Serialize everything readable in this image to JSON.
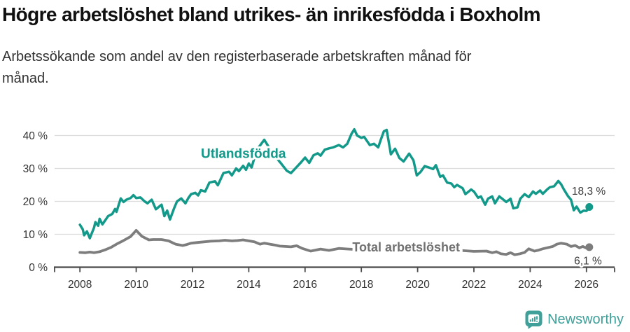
{
  "header": {
    "title": "Högre arbetslöshet bland utrikes- än inrikesfödda i Boxholm",
    "subtitle_lines": [
      "Arbetssökande som andel av den registerbaserade arbetskraften månad för",
      "månad."
    ]
  },
  "footer": {
    "brand": "Newsworthy",
    "logo_icon": "speech-bubble-bar-chart",
    "brand_color": "#3f9f99"
  },
  "chart_data": {
    "type": "line",
    "title": "Högre arbetslöshet bland utrikes- än inrikesfödda i Boxholm",
    "subtitle": "Arbetssökande som andel av den registerbaserade arbetskraften månad för månad.",
    "xlabel": "",
    "ylabel": "",
    "xlim": [
      2007.1,
      2027.0
    ],
    "ylim": [
      0,
      42.5
    ],
    "grid": "horizontal",
    "grid_color": "#dcdcdc",
    "axis_color": "#4a4a4a",
    "tick_label_color": "#333333",
    "x_ticks": [
      2008,
      2010,
      2012,
      2014,
      2016,
      2018,
      2020,
      2022,
      2024,
      2026
    ],
    "x_tick_labels": [
      "2008",
      "2010",
      "2012",
      "2014",
      "2016",
      "2018",
      "2020",
      "2022",
      "2024",
      "2026"
    ],
    "y_ticks": [
      0,
      10,
      20,
      30,
      40
    ],
    "y_tick_labels": [
      "0 %",
      "10 %",
      "20 %",
      "30 %",
      "40 %"
    ],
    "series": [
      {
        "name": "Utlandsfödda",
        "color": "#13998a",
        "line_width": 3.5,
        "end_dot": true,
        "end_value": 18.3,
        "points": [
          [
            2008.0,
            12.9
          ],
          [
            2008.1,
            11.5
          ],
          [
            2008.15,
            9.7
          ],
          [
            2008.25,
            10.9
          ],
          [
            2008.35,
            8.8
          ],
          [
            2008.5,
            12.0
          ],
          [
            2008.55,
            13.7
          ],
          [
            2008.65,
            12.6
          ],
          [
            2008.7,
            14.7
          ],
          [
            2008.8,
            13.0
          ],
          [
            2009.0,
            15.5
          ],
          [
            2009.15,
            16.2
          ],
          [
            2009.25,
            17.7
          ],
          [
            2009.3,
            16.8
          ],
          [
            2009.45,
            20.9
          ],
          [
            2009.55,
            19.8
          ],
          [
            2009.65,
            20.5
          ],
          [
            2009.8,
            21.0
          ],
          [
            2009.9,
            21.9
          ],
          [
            2010.0,
            21.0
          ],
          [
            2010.15,
            21.2
          ],
          [
            2010.3,
            20.0
          ],
          [
            2010.4,
            19.4
          ],
          [
            2010.55,
            20.5
          ],
          [
            2010.7,
            17.6
          ],
          [
            2010.8,
            18.3
          ],
          [
            2010.9,
            19.0
          ],
          [
            2011.0,
            15.5
          ],
          [
            2011.1,
            17.2
          ],
          [
            2011.2,
            14.5
          ],
          [
            2011.35,
            18.0
          ],
          [
            2011.45,
            20.0
          ],
          [
            2011.6,
            20.9
          ],
          [
            2011.75,
            19.4
          ],
          [
            2011.85,
            21.0
          ],
          [
            2011.95,
            22.2
          ],
          [
            2012.1,
            22.6
          ],
          [
            2012.2,
            21.8
          ],
          [
            2012.3,
            23.4
          ],
          [
            2012.45,
            23.0
          ],
          [
            2012.6,
            25.7
          ],
          [
            2012.8,
            26.1
          ],
          [
            2012.9,
            24.9
          ],
          [
            2013.1,
            28.6
          ],
          [
            2013.3,
            29.0
          ],
          [
            2013.4,
            27.9
          ],
          [
            2013.55,
            30.0
          ],
          [
            2013.65,
            29.2
          ],
          [
            2013.8,
            30.8
          ],
          [
            2013.9,
            29.6
          ],
          [
            2014.0,
            31.5
          ],
          [
            2014.1,
            30.3
          ],
          [
            2014.2,
            33.2
          ],
          [
            2014.35,
            36.4
          ],
          [
            2014.55,
            38.7
          ],
          [
            2014.75,
            36.0
          ],
          [
            2014.95,
            33.5
          ],
          [
            2015.15,
            31.5
          ],
          [
            2015.35,
            29.3
          ],
          [
            2015.5,
            28.6
          ],
          [
            2015.7,
            30.4
          ],
          [
            2015.85,
            31.8
          ],
          [
            2016.0,
            33.3
          ],
          [
            2016.15,
            31.7
          ],
          [
            2016.3,
            34.0
          ],
          [
            2016.45,
            34.6
          ],
          [
            2016.55,
            33.9
          ],
          [
            2016.7,
            35.7
          ],
          [
            2016.85,
            36.1
          ],
          [
            2017.0,
            36.4
          ],
          [
            2017.2,
            37.1
          ],
          [
            2017.35,
            36.4
          ],
          [
            2017.5,
            37.5
          ],
          [
            2017.65,
            40.5
          ],
          [
            2017.75,
            41.9
          ],
          [
            2017.85,
            40.0
          ],
          [
            2018.0,
            39.3
          ],
          [
            2018.1,
            39.6
          ],
          [
            2018.3,
            37.1
          ],
          [
            2018.45,
            37.5
          ],
          [
            2018.6,
            36.4
          ],
          [
            2018.7,
            38.9
          ],
          [
            2018.8,
            41.3
          ],
          [
            2018.9,
            41.7
          ],
          [
            2019.05,
            34.3
          ],
          [
            2019.2,
            36.0
          ],
          [
            2019.35,
            33.2
          ],
          [
            2019.5,
            32.1
          ],
          [
            2019.7,
            34.5
          ],
          [
            2019.85,
            32.5
          ],
          [
            2019.97,
            27.9
          ],
          [
            2020.1,
            28.9
          ],
          [
            2020.25,
            30.7
          ],
          [
            2020.4,
            30.3
          ],
          [
            2020.55,
            29.8
          ],
          [
            2020.65,
            31.0
          ],
          [
            2020.8,
            27.5
          ],
          [
            2020.9,
            27.9
          ],
          [
            2021.05,
            25.7
          ],
          [
            2021.2,
            25.4
          ],
          [
            2021.3,
            24.3
          ],
          [
            2021.4,
            25.0
          ],
          [
            2021.6,
            24.0
          ],
          [
            2021.7,
            22.2
          ],
          [
            2021.9,
            23.6
          ],
          [
            2022.0,
            23.0
          ],
          [
            2022.15,
            21.1
          ],
          [
            2022.25,
            21.5
          ],
          [
            2022.4,
            19.0
          ],
          [
            2022.5,
            20.8
          ],
          [
            2022.65,
            21.5
          ],
          [
            2022.75,
            19.4
          ],
          [
            2022.9,
            21.5
          ],
          [
            2023.05,
            20.5
          ],
          [
            2023.15,
            19.8
          ],
          [
            2023.3,
            20.8
          ],
          [
            2023.4,
            17.9
          ],
          [
            2023.55,
            18.2
          ],
          [
            2023.65,
            20.8
          ],
          [
            2023.8,
            22.2
          ],
          [
            2023.95,
            21.3
          ],
          [
            2024.1,
            23.0
          ],
          [
            2024.2,
            22.3
          ],
          [
            2024.35,
            23.3
          ],
          [
            2024.45,
            22.3
          ],
          [
            2024.6,
            23.6
          ],
          [
            2024.7,
            24.3
          ],
          [
            2024.85,
            24.6
          ],
          [
            2025.0,
            26.2
          ],
          [
            2025.1,
            25.2
          ],
          [
            2025.2,
            23.6
          ],
          [
            2025.35,
            21.5
          ],
          [
            2025.45,
            20.5
          ],
          [
            2025.55,
            17.3
          ],
          [
            2025.65,
            18.4
          ],
          [
            2025.78,
            16.6
          ],
          [
            2025.9,
            17.2
          ],
          [
            2026.0,
            17.1
          ],
          [
            2026.1,
            18.3
          ]
        ]
      },
      {
        "name": "Total arbetslöshet",
        "color": "#7d7d7d",
        "line_width": 3.8,
        "end_dot": true,
        "end_value": 6.1,
        "points": [
          [
            2008.0,
            4.5
          ],
          [
            2008.2,
            4.4
          ],
          [
            2008.35,
            4.6
          ],
          [
            2008.5,
            4.4
          ],
          [
            2008.7,
            4.7
          ],
          [
            2008.9,
            5.3
          ],
          [
            2009.1,
            6.0
          ],
          [
            2009.3,
            7.0
          ],
          [
            2009.55,
            8.1
          ],
          [
            2009.8,
            9.3
          ],
          [
            2010.0,
            11.2
          ],
          [
            2010.2,
            9.4
          ],
          [
            2010.45,
            8.3
          ],
          [
            2010.6,
            8.4
          ],
          [
            2010.9,
            8.4
          ],
          [
            2011.15,
            8.0
          ],
          [
            2011.4,
            7.0
          ],
          [
            2011.65,
            6.6
          ],
          [
            2011.8,
            6.9
          ],
          [
            2011.95,
            7.3
          ],
          [
            2012.15,
            7.5
          ],
          [
            2012.4,
            7.7
          ],
          [
            2012.65,
            7.9
          ],
          [
            2012.95,
            8.0
          ],
          [
            2013.15,
            8.2
          ],
          [
            2013.4,
            8.0
          ],
          [
            2013.6,
            8.1
          ],
          [
            2013.8,
            8.3
          ],
          [
            2014.0,
            8.0
          ],
          [
            2014.2,
            7.7
          ],
          [
            2014.4,
            7.0
          ],
          [
            2014.55,
            7.3
          ],
          [
            2014.75,
            7.0
          ],
          [
            2014.95,
            6.7
          ],
          [
            2015.1,
            6.4
          ],
          [
            2015.3,
            6.3
          ],
          [
            2015.5,
            6.2
          ],
          [
            2015.7,
            6.5
          ],
          [
            2015.9,
            5.7
          ],
          [
            2016.2,
            4.9
          ],
          [
            2016.55,
            5.5
          ],
          [
            2016.85,
            5.1
          ],
          [
            2017.2,
            5.7
          ],
          [
            2017.55,
            5.5
          ],
          [
            2018.0,
            5.3
          ],
          [
            2018.5,
            5.1
          ],
          [
            2019.0,
            5.0
          ],
          [
            2019.5,
            5.2
          ],
          [
            2020.0,
            5.6
          ],
          [
            2020.5,
            5.8
          ],
          [
            2021.0,
            5.4
          ],
          [
            2021.5,
            5.1
          ],
          [
            2022.0,
            4.8
          ],
          [
            2022.45,
            4.9
          ],
          [
            2022.65,
            4.4
          ],
          [
            2022.8,
            4.7
          ],
          [
            2022.95,
            4.1
          ],
          [
            2023.15,
            3.9
          ],
          [
            2023.3,
            4.4
          ],
          [
            2023.45,
            3.8
          ],
          [
            2023.65,
            4.1
          ],
          [
            2023.8,
            4.5
          ],
          [
            2023.95,
            5.6
          ],
          [
            2024.15,
            4.9
          ],
          [
            2024.3,
            5.2
          ],
          [
            2024.45,
            5.6
          ],
          [
            2024.6,
            5.9
          ],
          [
            2024.8,
            6.3
          ],
          [
            2024.95,
            7.0
          ],
          [
            2025.1,
            7.3
          ],
          [
            2025.3,
            7.0
          ],
          [
            2025.45,
            6.3
          ],
          [
            2025.6,
            6.6
          ],
          [
            2025.75,
            5.9
          ],
          [
            2025.87,
            6.3
          ],
          [
            2026.0,
            5.8
          ],
          [
            2026.1,
            6.1
          ]
        ]
      }
    ],
    "annotations": [
      {
        "text": "Utlandsfödda",
        "x": 2012.3,
        "y": 34.3,
        "color": "#13998a",
        "size": 19,
        "weight": 700,
        "halo": 6
      },
      {
        "text": "Total arbetslöshet",
        "x": 2017.68,
        "y": 5.8,
        "color": "#717171",
        "size": 18,
        "weight": 700,
        "halo": 8
      },
      {
        "text": "18,3 %",
        "x": 2025.48,
        "y": 22.9,
        "color": "#3a3a3a",
        "size": 15.5,
        "weight": 400,
        "halo": 5
      },
      {
        "text": "6,1 %",
        "x": 2025.56,
        "y": 1.7,
        "color": "#3a3a3a",
        "size": 15.5,
        "weight": 400,
        "halo": 5
      }
    ],
    "legend_position": "inline-labels"
  }
}
